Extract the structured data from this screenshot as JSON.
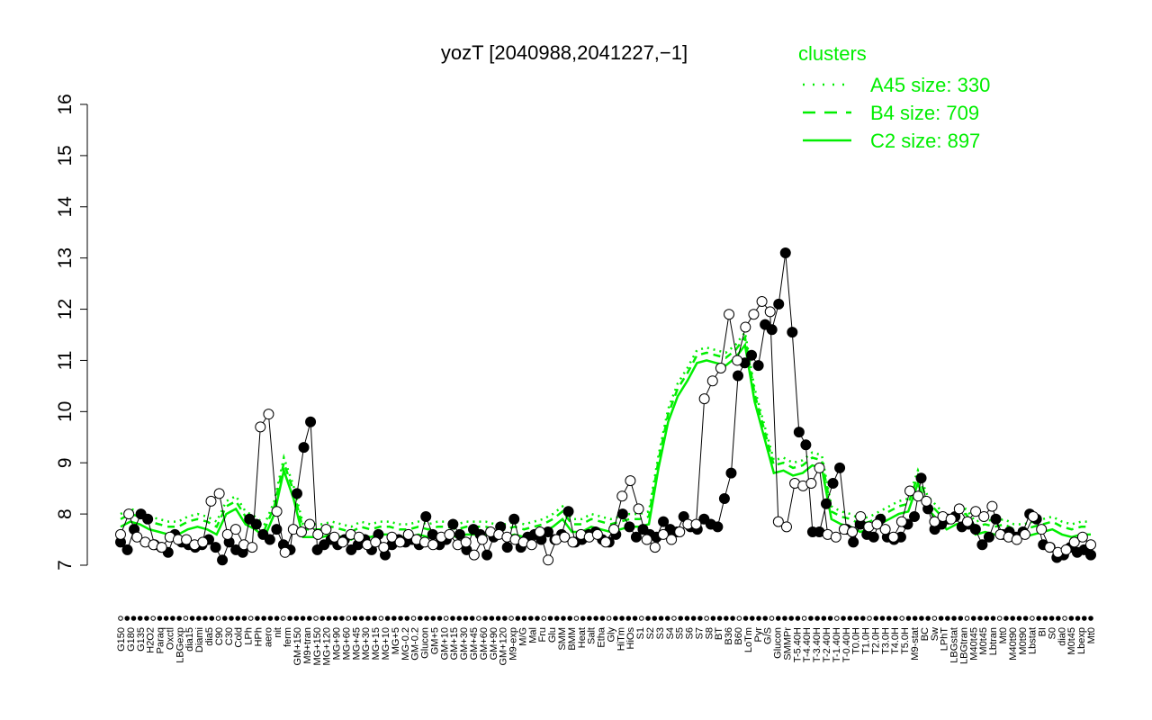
{
  "chart_data": {
    "type": "line",
    "title": "yozT [2040988,2041227,−1]",
    "xlabel": "",
    "ylabel": "",
    "ylim": [
      7,
      16
    ],
    "yticks": [
      7,
      8,
      9,
      10,
      11,
      12,
      13,
      14,
      15,
      16
    ],
    "grid": false,
    "legend": {
      "title": "clusters",
      "placement": "top-right",
      "color": "#00ee00",
      "entries": [
        {
          "label": "A45 size: 330",
          "style": "dotted"
        },
        {
          "label": "B4 size: 709",
          "style": "dashed"
        },
        {
          "label": "C2 size: 897",
          "style": "solid"
        }
      ]
    },
    "tick_labels": [
      "G150",
      "G180",
      "G135",
      "H2O2",
      "Paraq",
      "Oxctl",
      "LBGexp",
      "dia15",
      "Diami",
      "dia5",
      "C90",
      "C30",
      "Cold",
      "LPh",
      "HPh",
      "aero",
      "nit",
      "ferm",
      "GM+150",
      "M9+tran",
      "MG+150",
      "MG+120",
      "MG+90",
      "MG+60",
      "MG+45",
      "MG+30",
      "MG+15",
      "MG+10",
      "MG+5",
      "MG-0.2",
      "GM-0.2",
      "Glucon",
      "GM+5",
      "GM+10",
      "GM+15",
      "GM+30",
      "GM+45",
      "GM+60",
      "GM+90",
      "GM+120",
      "M9-exp",
      "M/G",
      "Mal",
      "Fru",
      "Glu",
      "SMM",
      "BMM",
      "Heat",
      "Salt",
      "Etha",
      "Gly",
      "HiTm",
      "HiOs",
      "S1",
      "S2",
      "S3",
      "S4",
      "S5",
      "S6",
      "S7",
      "S8",
      "BT",
      "B36",
      "B60",
      "LoTm",
      "Pyr",
      "G/S",
      "Glucon",
      "SMMPr",
      "T-5.40H",
      "T-4.40H",
      "T-3.40H",
      "T-2.40H",
      "T-1.40H",
      "T-0.40H",
      "T0.0H",
      "T1.0H",
      "T2.0H",
      "T3.0H",
      "T4.0H",
      "T5.0H",
      "M9-stat",
      "BC",
      "Sw",
      "LPhT",
      "LBGstat",
      "LBGtran",
      "M40t45",
      "M0t45",
      "Lbtran",
      "Mt0",
      "M40t90",
      "M0t90",
      "Lbstat",
      "BI",
      "S0",
      "dia0",
      "M0t45",
      "Lbexp",
      "Mt0"
    ],
    "series": [
      {
        "style": "points-black",
        "values": [
          7.45,
          7.3,
          7.7,
          8.0,
          7.9,
          7.4,
          7.35,
          7.25,
          7.6,
          7.45,
          7.4,
          7.35,
          7.4,
          7.5,
          7.35,
          7.1,
          7.45,
          7.3,
          7.25,
          7.9,
          7.8,
          7.6,
          7.5,
          7.7,
          7.4,
          7.3,
          8.4,
          9.3,
          9.8,
          7.3,
          7.4,
          7.5,
          7.4,
          7.5,
          7.3,
          7.4,
          7.5,
          7.3,
          7.6,
          7.2,
          7.4,
          7.5,
          7.45,
          7.5,
          7.4,
          7.95,
          7.6,
          7.4,
          7.5,
          7.8,
          7.6,
          7.3,
          7.7,
          7.6,
          7.2,
          7.55,
          7.75,
          7.35,
          7.9,
          7.35,
          7.55,
          7.6,
          7.5,
          7.65,
          7.5,
          7.6,
          8.05,
          7.45,
          7.5,
          7.6,
          7.65,
          7.5,
          7.45,
          7.6,
          8.0,
          7.75,
          7.55,
          7.7,
          7.6,
          7.55,
          7.85,
          7.7,
          7.65,
          7.95,
          7.75,
          7.7,
          7.9,
          7.8,
          7.75,
          8.3,
          8.8,
          10.7,
          10.95,
          11.1,
          10.9,
          11.7,
          11.6,
          12.1,
          13.1,
          11.55,
          9.6,
          9.35,
          7.65,
          7.65,
          8.2,
          8.6,
          8.9,
          7.7,
          7.45,
          7.8,
          7.6,
          7.55,
          7.9,
          7.55,
          7.5,
          7.55,
          7.8,
          7.95,
          8.7,
          8.1,
          7.7,
          7.8,
          7.9,
          7.95,
          7.75,
          7.8,
          7.7,
          7.4,
          7.55,
          7.9,
          7.6,
          7.65,
          7.55,
          7.65,
          8.0,
          7.9,
          7.4,
          7.35,
          7.15,
          7.2,
          7.35,
          7.25,
          7.3,
          7.2
        ]
      },
      {
        "style": "points-white",
        "values": [
          7.6,
          8.0,
          7.55,
          7.45,
          7.4,
          7.35,
          7.55,
          7.5,
          7.5,
          7.4,
          7.45,
          8.25,
          8.4,
          7.6,
          7.7,
          7.4,
          7.35,
          9.7,
          9.95,
          8.05,
          7.25,
          7.7,
          7.65,
          7.8,
          7.6,
          7.7,
          7.55,
          7.45,
          7.6,
          7.55,
          7.4,
          7.45,
          7.35,
          7.55,
          7.45,
          7.6,
          7.5,
          7.45,
          7.4,
          7.55,
          7.6,
          7.4,
          7.45,
          7.2,
          7.5,
          7.65,
          7.6,
          7.55,
          7.5,
          7.45,
          7.4,
          7.65,
          7.1,
          7.5,
          7.55,
          7.45,
          7.6,
          7.55,
          7.6,
          7.45,
          7.7,
          8.35,
          8.65,
          8.1,
          7.5,
          7.35,
          7.6,
          7.5,
          7.65,
          7.8,
          7.8,
          10.25,
          10.6,
          10.85,
          11.9,
          11.0,
          11.65,
          11.9,
          12.15,
          11.95,
          7.85,
          7.75,
          8.6,
          8.55,
          8.6,
          8.9,
          7.6,
          7.55,
          7.7,
          7.65,
          7.95,
          7.75,
          7.8,
          7.7,
          7.55,
          7.85,
          8.45,
          8.35,
          8.25,
          7.85,
          7.95,
          7.9,
          8.1,
          7.85,
          8.05,
          7.95,
          8.15,
          7.6,
          7.55,
          7.5,
          7.6,
          7.95,
          7.7,
          7.35,
          7.25,
          7.3,
          7.45,
          7.55,
          7.4
        ]
      },
      {
        "name": "",
        "style": "line-green",
        "values": [
          7.75,
          7.85,
          7.8,
          7.7,
          7.65,
          7.6,
          7.6,
          7.7,
          7.75,
          7.7,
          7.6,
          8.0,
          8.1,
          7.8,
          7.7,
          7.55,
          8.0,
          8.85,
          8.3,
          7.55,
          7.55,
          7.55,
          7.6,
          7.55,
          7.5,
          7.6,
          7.55,
          7.6,
          7.6,
          7.55,
          7.55,
          7.6,
          7.55,
          7.6,
          7.6,
          7.55,
          7.6,
          7.6,
          7.6,
          7.55,
          7.55,
          7.6,
          7.55,
          7.6,
          7.65,
          7.75,
          7.9,
          7.65,
          7.65,
          7.75,
          7.7,
          7.65,
          7.7,
          7.75,
          7.75,
          7.8,
          8.9,
          9.8,
          10.3,
          10.6,
          10.95,
          11.0,
          10.95,
          10.9,
          11.05,
          11.3,
          10.2,
          9.5,
          8.8,
          8.85,
          8.75,
          8.8,
          8.95,
          8.9,
          7.9,
          7.8,
          7.75,
          7.65,
          7.7,
          7.8,
          7.9,
          8.0,
          8.05,
          8.6,
          8.1,
          7.9,
          7.7,
          7.8,
          7.85,
          7.6,
          7.65,
          7.6,
          7.65,
          7.55,
          7.55,
          7.6,
          7.65,
          7.7,
          7.6,
          7.55,
          7.6,
          7.6
        ]
      }
    ]
  }
}
